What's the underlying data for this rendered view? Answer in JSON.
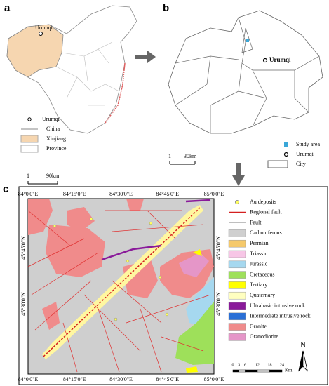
{
  "panel_a": {
    "label": "a",
    "city_label": "Urumqi",
    "legend": [
      "Urumqi",
      "China",
      "Xinjiang",
      "Province"
    ],
    "scale": {
      "start": "1",
      "length": "90km"
    }
  },
  "panel_b": {
    "label": "b",
    "city_label": "Urumqi",
    "legend": [
      "Study area",
      "Urumqi",
      "City"
    ],
    "scale": {
      "start": "1",
      "length": "30km"
    }
  },
  "panel_c": {
    "label": "c",
    "longitude_labels": [
      "84°0'0\"E",
      "84°15'0\"E",
      "84°30'0\"E",
      "84°45'0\"E",
      "85°0'0\"E"
    ],
    "latitude_labels": [
      "45°45'0\"N",
      "45°30'0\"N"
    ],
    "legend": [
      "Au deposits",
      "Regional fault",
      "Fault",
      "Carboniferous",
      "Permian",
      "Triassic",
      "Jurassic",
      "Cretaceous",
      "Tertiary",
      "Quaternary",
      "Ultrabasic intrusive rock",
      "Intermediate intrusive rock",
      "Granite",
      "Granodiorite"
    ],
    "scale": {
      "ticks": [
        0,
        3,
        6,
        12,
        18,
        24
      ],
      "unit": "Km"
    },
    "north": "N"
  }
}
